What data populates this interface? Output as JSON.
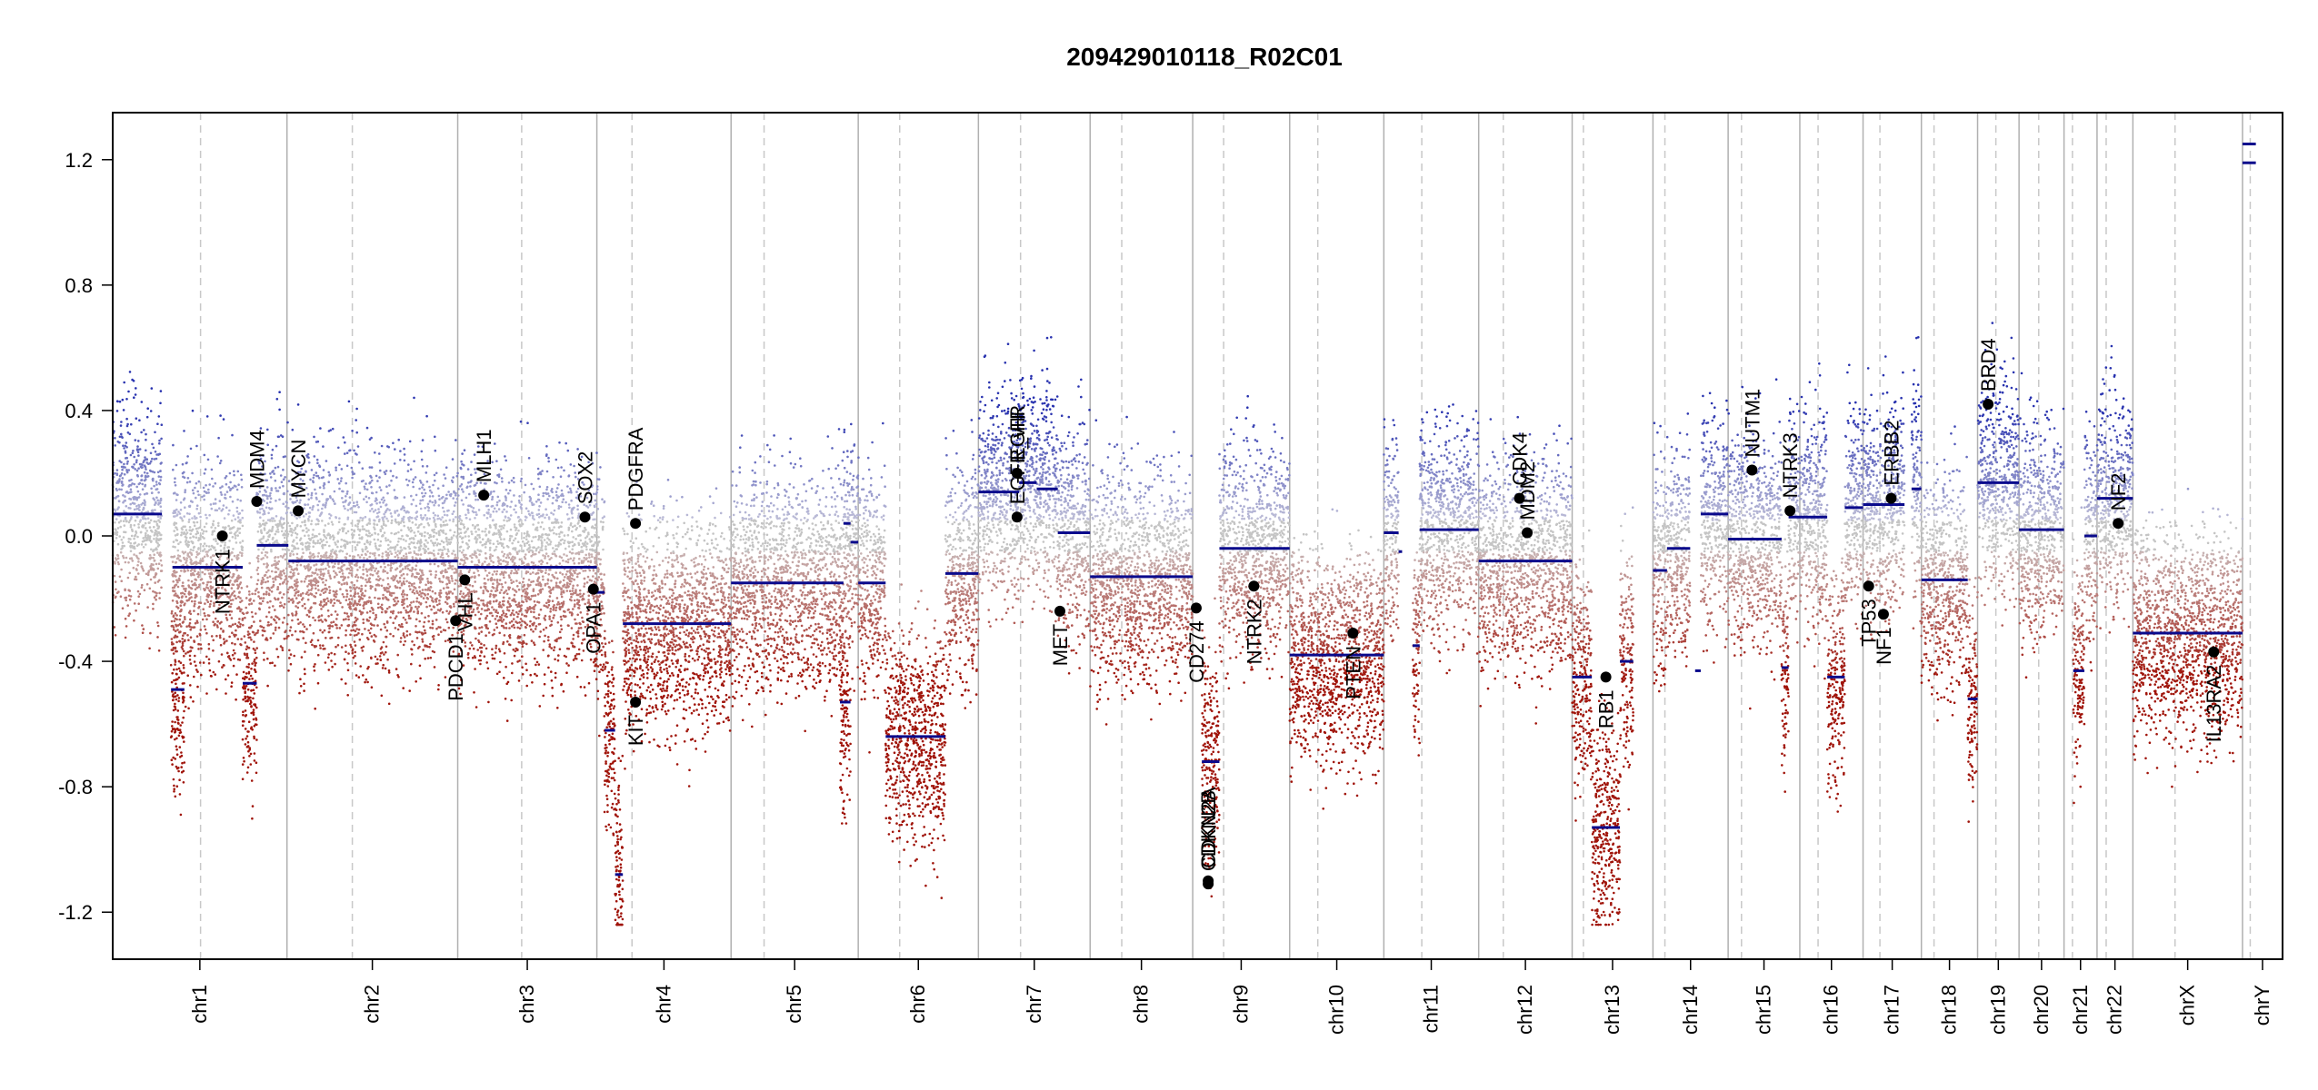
{
  "chart_data": {
    "type": "scatter",
    "title": "209429010118_R02C01",
    "xlabel": "",
    "ylabel": "",
    "ylim": [
      -1.35,
      1.35
    ],
    "yticks": [
      -1.2,
      -0.8,
      -0.4,
      0.0,
      0.4,
      0.8,
      1.2
    ],
    "ytick_labels": [
      "-1.2",
      "-0.8",
      "-0.4",
      "0.0",
      "0.4",
      "0.8",
      "1.2"
    ],
    "grid": false,
    "legend": "none",
    "colors": {
      "gain": "#2a3aa8",
      "loss": "#a01808",
      "neutral": "#b8b8b8",
      "segment": "#0a0a8c",
      "gene": "#000000",
      "boundary": "#b8b8b8"
    },
    "chromosomes": [
      {
        "name": "chr1",
        "start": 0,
        "end": 248,
        "centromere": 125
      },
      {
        "name": "chr2",
        "start": 248,
        "end": 491,
        "centromere": 341
      },
      {
        "name": "chr3",
        "start": 491,
        "end": 689,
        "centromere": 582
      },
      {
        "name": "chr4",
        "start": 689,
        "end": 880,
        "centromere": 739
      },
      {
        "name": "chr5",
        "start": 880,
        "end": 1061,
        "centromere": 927
      },
      {
        "name": "chr6",
        "start": 1061,
        "end": 1232,
        "centromere": 1120
      },
      {
        "name": "chr7",
        "start": 1232,
        "end": 1391,
        "centromere": 1292
      },
      {
        "name": "chr8",
        "start": 1391,
        "end": 1537,
        "centromere": 1436
      },
      {
        "name": "chr9",
        "start": 1537,
        "end": 1675,
        "centromere": 1581
      },
      {
        "name": "chr10",
        "start": 1675,
        "end": 1809,
        "centromere": 1715
      },
      {
        "name": "chr11",
        "start": 1809,
        "end": 1944,
        "centromere": 1863
      },
      {
        "name": "chr12",
        "start": 1944,
        "end": 2077,
        "centromere": 1979
      },
      {
        "name": "chr13",
        "start": 2077,
        "end": 2192,
        "centromere": 2093
      },
      {
        "name": "chr14",
        "start": 2192,
        "end": 2299,
        "centromere": 2209
      },
      {
        "name": "chr15",
        "start": 2299,
        "end": 2401,
        "centromere": 2318
      },
      {
        "name": "chr16",
        "start": 2401,
        "end": 2491,
        "centromere": 2427
      },
      {
        "name": "chr17",
        "start": 2491,
        "end": 2574,
        "centromere": 2515
      },
      {
        "name": "chr18",
        "start": 2574,
        "end": 2654,
        "centromere": 2592
      },
      {
        "name": "chr19",
        "start": 2654,
        "end": 2713,
        "centromere": 2680
      },
      {
        "name": "chr20",
        "start": 2713,
        "end": 2777,
        "centromere": 2741
      },
      {
        "name": "chr21",
        "start": 2777,
        "end": 2824,
        "centromere": 2789
      },
      {
        "name": "chr22",
        "start": 2824,
        "end": 2875,
        "centromere": 2837
      },
      {
        "name": "chrX",
        "start": 2875,
        "end": 3031,
        "centromere": 2935
      },
      {
        "name": "chrY",
        "start": 3031,
        "end": 3088,
        "centromere": 3042
      }
    ],
    "segments": [
      {
        "x0": 0,
        "x1": 70,
        "y": 0.07
      },
      {
        "x0": 83,
        "x1": 102,
        "y": -0.49
      },
      {
        "x0": 85,
        "x1": 185,
        "y": -0.1
      },
      {
        "x0": 185,
        "x1": 205,
        "y": -0.47
      },
      {
        "x0": 205,
        "x1": 250,
        "y": -0.03
      },
      {
        "x0": 250,
        "x1": 491,
        "y": -0.08
      },
      {
        "x0": 491,
        "x1": 689,
        "y": -0.1
      },
      {
        "x0": 686,
        "x1": 700,
        "y": -0.18
      },
      {
        "x0": 700,
        "x1": 715,
        "y": -0.62
      },
      {
        "x0": 715,
        "x1": 726,
        "y": -1.08
      },
      {
        "x0": 726,
        "x1": 880,
        "y": -0.28
      },
      {
        "x0": 880,
        "x1": 1040,
        "y": -0.15
      },
      {
        "x0": 1040,
        "x1": 1050,
        "y": 0.04
      },
      {
        "x0": 1050,
        "x1": 1061,
        "y": -0.02
      },
      {
        "x0": 1035,
        "x1": 1050,
        "y": -0.53
      },
      {
        "x0": 1061,
        "x1": 1100,
        "y": -0.15
      },
      {
        "x0": 1100,
        "x1": 1185,
        "y": -0.64
      },
      {
        "x0": 1185,
        "x1": 1232,
        "y": -0.12
      },
      {
        "x0": 1232,
        "x1": 1290,
        "y": 0.14
      },
      {
        "x0": 1290,
        "x1": 1315,
        "y": 0.17
      },
      {
        "x0": 1315,
        "x1": 1345,
        "y": 0.15
      },
      {
        "x0": 1345,
        "x1": 1391,
        "y": 0.01
      },
      {
        "x0": 1391,
        "x1": 1537,
        "y": -0.13
      },
      {
        "x0": 1550,
        "x1": 1575,
        "y": -0.72
      },
      {
        "x0": 1575,
        "x1": 1675,
        "y": -0.04
      },
      {
        "x0": 1675,
        "x1": 1809,
        "y": -0.38
      },
      {
        "x0": 1809,
        "x1": 1830,
        "y": 0.01
      },
      {
        "x0": 1830,
        "x1": 1835,
        "y": -0.05
      },
      {
        "x0": 1850,
        "x1": 1860,
        "y": -0.35
      },
      {
        "x0": 1860,
        "x1": 1944,
        "y": 0.02
      },
      {
        "x0": 1944,
        "x1": 2077,
        "y": -0.08
      },
      {
        "x0": 2077,
        "x1": 2105,
        "y": -0.45
      },
      {
        "x0": 2105,
        "x1": 2145,
        "y": -0.93
      },
      {
        "x0": 2145,
        "x1": 2164,
        "y": -0.4
      },
      {
        "x0": 2192,
        "x1": 2212,
        "y": -0.11
      },
      {
        "x0": 2212,
        "x1": 2245,
        "y": -0.04
      },
      {
        "x0": 2252,
        "x1": 2260,
        "y": -0.43
      },
      {
        "x0": 2260,
        "x1": 2299,
        "y": 0.07
      },
      {
        "x0": 2299,
        "x1": 2375,
        "y": -0.01
      },
      {
        "x0": 2375,
        "x1": 2385,
        "y": -0.42
      },
      {
        "x0": 2385,
        "x1": 2440,
        "y": 0.06
      },
      {
        "x0": 2440,
        "x1": 2465,
        "y": -0.45
      },
      {
        "x0": 2465,
        "x1": 2491,
        "y": 0.09
      },
      {
        "x0": 2491,
        "x1": 2535,
        "y": 0.1
      },
      {
        "x0": 2535,
        "x1": 2550,
        "y": 0.1
      },
      {
        "x0": 2560,
        "x1": 2574,
        "y": 0.15
      },
      {
        "x0": 2574,
        "x1": 2640,
        "y": -0.14
      },
      {
        "x0": 2640,
        "x1": 2654,
        "y": -0.52
      },
      {
        "x0": 2654,
        "x1": 2713,
        "y": 0.17
      },
      {
        "x0": 2713,
        "x1": 2777,
        "y": 0.02
      },
      {
        "x0": 2790,
        "x1": 2806,
        "y": -0.43
      },
      {
        "x0": 2806,
        "x1": 2824,
        "y": 0.0
      },
      {
        "x0": 2824,
        "x1": 2875,
        "y": 0.12
      },
      {
        "x0": 2875,
        "x1": 3031,
        "y": -0.31
      },
      {
        "x0": 3031,
        "x1": 3050,
        "y": 1.25
      },
      {
        "x0": 3031,
        "x1": 3050,
        "y": 1.19
      }
    ],
    "genes": [
      {
        "name": "NTRK1",
        "x": 156,
        "y": 0.0,
        "label_side": "below"
      },
      {
        "name": "MDM4",
        "x": 205,
        "y": 0.11,
        "label_side": "above"
      },
      {
        "name": "MYCN",
        "x": 16,
        "y": 0.08,
        "label_side": "above",
        "chrom_offset": 248
      },
      {
        "name": "PDCD1",
        "x": 240,
        "y": -0.27,
        "label_side": "below",
        "chrom_offset": 248
      },
      {
        "name": "VHL",
        "x": 10,
        "y": -0.14,
        "label_side": "below",
        "chrom_offset": 491
      },
      {
        "name": "MLH1",
        "x": 37,
        "y": 0.13,
        "label_side": "above",
        "chrom_offset": 491
      },
      {
        "name": "SOX2",
        "x": 181,
        "y": 0.06,
        "label_side": "above",
        "chrom_offset": 491
      },
      {
        "name": "OPA1",
        "x": 193,
        "y": -0.17,
        "label_side": "below",
        "chrom_offset": 491
      },
      {
        "name": "PDGFRA",
        "x": 55,
        "y": 0.04,
        "label_side": "above",
        "chrom_offset": 689
      },
      {
        "name": "KIT",
        "x": 55,
        "y": -0.53,
        "label_side": "below",
        "chrom_offset": 689
      },
      {
        "name": "EGFR",
        "x": 55,
        "y": 0.2,
        "label_side": "above",
        "chrom_offset": 1232
      },
      {
        "name": "EGFR_vIII",
        "x": 55,
        "y": 0.06,
        "label_side": "above",
        "chrom_offset": 1232
      },
      {
        "name": "MET",
        "x": 116,
        "y": -0.24,
        "label_side": "below",
        "chrom_offset": 1232
      },
      {
        "name": "CD274",
        "x": 5,
        "y": -0.23,
        "label_side": "below",
        "chrom_offset": 1537
      },
      {
        "name": "CDKN2A",
        "x": 22,
        "y": -1.1,
        "label_side": "above",
        "chrom_offset": 1537
      },
      {
        "name": "CDKN2B",
        "x": 22,
        "y": -1.11,
        "label_side": "above",
        "chrom_offset": 1537
      },
      {
        "name": "NTRK2",
        "x": 87,
        "y": -0.16,
        "label_side": "below",
        "chrom_offset": 1537
      },
      {
        "name": "PTEN",
        "x": 90,
        "y": -0.31,
        "label_side": "below",
        "chrom_offset": 1675
      },
      {
        "name": "CDK4",
        "x": 58,
        "y": 0.12,
        "label_side": "above",
        "chrom_offset": 1944
      },
      {
        "name": "MDM2",
        "x": 69,
        "y": 0.01,
        "label_side": "above",
        "chrom_offset": 1944
      },
      {
        "name": "RB1",
        "x": 48,
        "y": -0.45,
        "label_side": "below",
        "chrom_offset": 2077
      },
      {
        "name": "NUTM1",
        "x": 34,
        "y": 0.21,
        "label_side": "above",
        "chrom_offset": 2299
      },
      {
        "name": "NTRK3",
        "x": 88,
        "y": 0.08,
        "label_side": "above",
        "chrom_offset": 2299
      },
      {
        "name": "TP53",
        "x": 8,
        "y": -0.16,
        "label_side": "below",
        "chrom_offset": 2491
      },
      {
        "name": "NF1",
        "x": 29,
        "y": -0.25,
        "label_side": "below",
        "chrom_offset": 2491
      },
      {
        "name": "ERBB2",
        "x": 40,
        "y": 0.12,
        "label_side": "above",
        "chrom_offset": 2491
      },
      {
        "name": "BRD4",
        "x": 15,
        "y": 0.42,
        "label_side": "above",
        "chrom_offset": 2654
      },
      {
        "name": "NF2",
        "x": 30,
        "y": 0.04,
        "label_side": "above",
        "chrom_offset": 2824
      },
      {
        "name": "IL13RA2",
        "x": 115,
        "y": -0.37,
        "label_side": "below",
        "chrom_offset": 2875
      }
    ]
  }
}
